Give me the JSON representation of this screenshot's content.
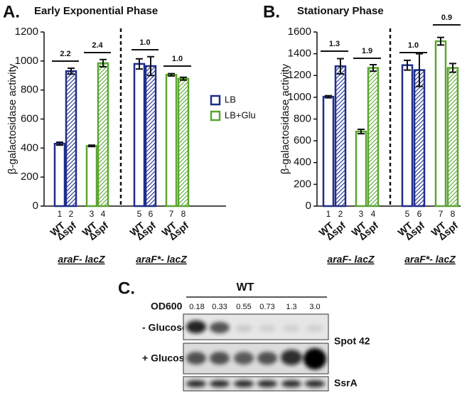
{
  "chart_data": [
    {
      "type": "bar",
      "panel": "A.",
      "title": "Early Exponential Phase",
      "y_label": "β-galactosidase activity",
      "categories": [
        "1",
        "2",
        "3",
        "4",
        "5",
        "6",
        "7",
        "8"
      ],
      "strains": [
        "WT",
        "Δspf",
        "WT",
        "Δspf",
        "WT",
        "Δspf",
        "WT",
        "Δspf"
      ],
      "hatched": [
        false,
        true,
        false,
        true,
        false,
        true,
        false,
        true
      ],
      "groups": [
        "araF- lacZ",
        "araF*- lacZ"
      ],
      "fold_changes": [
        "2.2",
        "2.4",
        "1.0",
        "1.0"
      ],
      "series": [
        {
          "name": "LB",
          "color": "#1f2d8a",
          "values": [
            430,
            930,
            null,
            null,
            980,
            965,
            null,
            null
          ],
          "errors": [
            10,
            20,
            null,
            null,
            35,
            65,
            null,
            null
          ]
        },
        {
          "name": "LB+Glu",
          "color": "#5ca632",
          "values": [
            null,
            null,
            415,
            985,
            null,
            null,
            905,
            878
          ],
          "errors": [
            null,
            null,
            5,
            25,
            null,
            null,
            8,
            10
          ]
        }
      ],
      "ylim": [
        0,
        1200
      ],
      "yticks": [
        0,
        200,
        400,
        600,
        800,
        1000,
        1200
      ]
    },
    {
      "type": "bar",
      "panel": "B.",
      "title": "Stationary Phase",
      "y_label": "β-galactosidase activity",
      "categories": [
        "1",
        "2",
        "3",
        "4",
        "5",
        "6",
        "7",
        "8"
      ],
      "strains": [
        "WT",
        "Δspf",
        "WT",
        "Δspf",
        "WT",
        "Δspf",
        "WT",
        "Δspf"
      ],
      "hatched": [
        false,
        true,
        false,
        true,
        false,
        true,
        false,
        true
      ],
      "groups": [
        "araF- lacZ",
        "araF*- lacZ"
      ],
      "fold_changes": [
        "1.3",
        "1.9",
        "1.0",
        "0.9"
      ],
      "series": [
        {
          "color": "#1f2d8a",
          "values": [
            1005,
            1285,
            null,
            null,
            1295,
            1250,
            null,
            null
          ],
          "errors": [
            10,
            70,
            null,
            null,
            45,
            150,
            null,
            null
          ]
        },
        {
          "color": "#5ca632",
          "values": [
            null,
            null,
            685,
            1270,
            null,
            null,
            1515,
            1270
          ],
          "errors": [
            null,
            null,
            20,
            30,
            null,
            null,
            35,
            40
          ]
        }
      ],
      "ylim": [
        0,
        1600
      ],
      "yticks": [
        0,
        200,
        400,
        600,
        800,
        1000,
        1200,
        1400,
        1600
      ]
    }
  ],
  "panel_c": {
    "panel": "C.",
    "strain": "WT",
    "od_label": "OD600",
    "od_values": [
      "0.18",
      "0.33",
      "0.55",
      "0.73",
      "1.3",
      "3.0"
    ],
    "row_labels": [
      "- Glucose",
      "+ Glucose"
    ],
    "probe_labels": [
      "Spot 42",
      "SsrA"
    ]
  }
}
